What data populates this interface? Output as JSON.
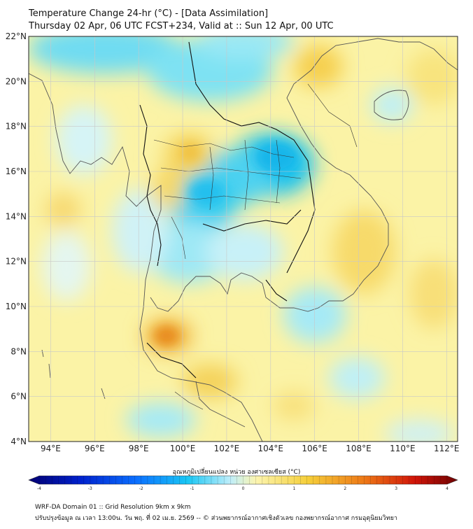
{
  "header": {
    "title_line1": "Temperature Change 24-hr (°C) - [Data Assimilation]",
    "title_line2": "Thursday 02 Apr, 06 UTC FCST+234, Valid at :: Sun 12 Apr, 00 UTC"
  },
  "map": {
    "lat_labels": [
      "22°N",
      "20°N",
      "18°N",
      "16°N",
      "14°N",
      "12°N",
      "10°N",
      "8°N",
      "6°N",
      "4°N"
    ],
    "lon_labels": [
      "94°E",
      "96°E",
      "98°E",
      "100°E",
      "102°E",
      "104°E",
      "106°E",
      "108°E",
      "110°E",
      "112°E"
    ],
    "lat_range": [
      4,
      22
    ],
    "lon_range": [
      93,
      112.5
    ],
    "grid": true,
    "field_colors": {
      "ocean_warm": "#fbf3a6",
      "cool": "#26cdf0",
      "light_cool": "#bff0f6",
      "warm": "#f3c44a",
      "hot": "#e67f18",
      "coastline": "#555555",
      "border": "#111111"
    }
  },
  "colorbar": {
    "title": "อุณหภูมิเปลี่ยนแปลง หน่วย องศาเซลเซียส (°C)",
    "ticks": [
      "-4",
      "-3",
      "-2",
      "-1",
      "0",
      "1",
      "2",
      "3",
      "4"
    ],
    "range": [
      -4,
      4
    ],
    "colors": [
      "#020072",
      "#0020cc",
      "#0b6fff",
      "#19c6f4",
      "#bfeefa",
      "#fcf5b0",
      "#f5cf3a",
      "#ee7a17",
      "#d01408",
      "#6e0202"
    ]
  },
  "footer": {
    "line1": "WRF-DA Domain 01 :: Grid Resolution 9km x 9km",
    "line2": "ปรับปรุงข้อมูล ณ เวลา 13:00น. วัน พฤ. ที่ 02 เม.ย. 2569 -- © ส่วนพยากรณ์อากาศเชิงตัวเลข กองพยากรณ์อากาศ กรมอุตุนิยมวิทยา"
  }
}
